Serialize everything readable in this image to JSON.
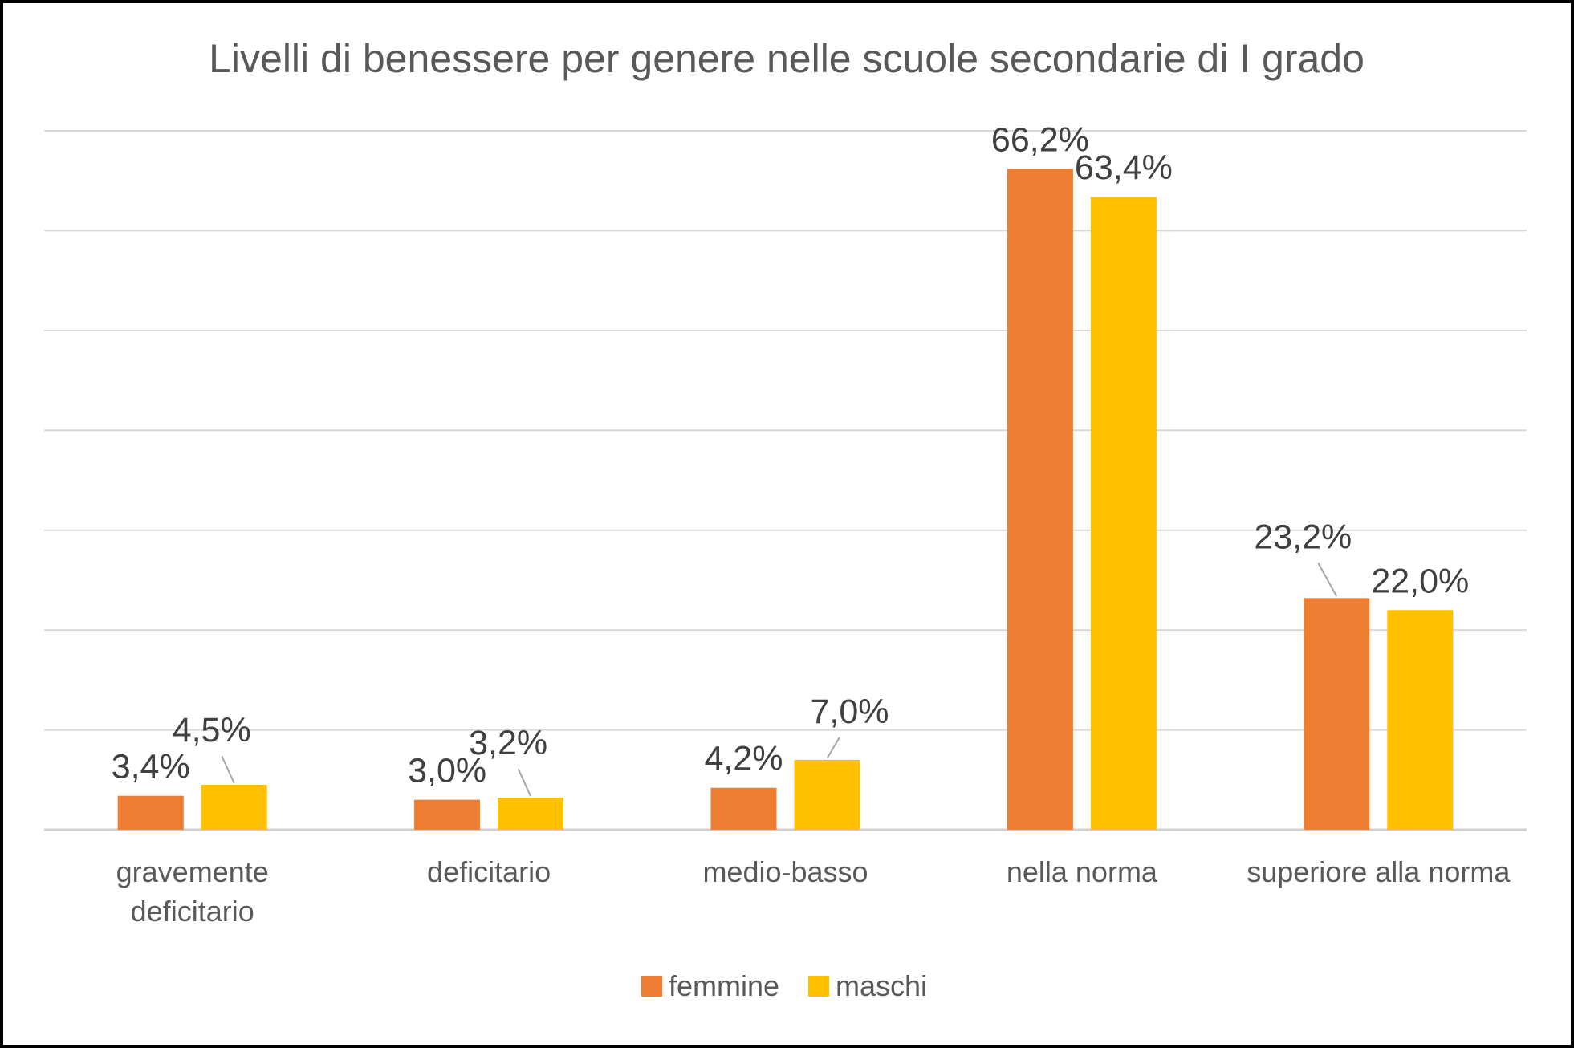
{
  "chart_data": {
    "type": "bar",
    "title": "Livelli di benessere per genere nelle scuole secondarie di I grado",
    "categories": [
      [
        "gravemente",
        "deficitario"
      ],
      [
        "deficitario"
      ],
      [
        "medio-basso"
      ],
      [
        "nella norma"
      ],
      [
        "superiore alla norma"
      ]
    ],
    "series": [
      {
        "name": "femmine",
        "color": "#ED7D31",
        "values": [
          3.4,
          3.0,
          4.2,
          66.2,
          23.2
        ],
        "labels": [
          "3,4%",
          "3,0%",
          "4,2%",
          "66,2%",
          "23,2%"
        ]
      },
      {
        "name": "maschi",
        "color": "#FFC000",
        "values": [
          4.5,
          3.2,
          7.0,
          63.4,
          22.0
        ],
        "labels": [
          "4,5%",
          "3,2%",
          "7,0%",
          "63,4%",
          "22,0%"
        ]
      }
    ],
    "ylim": [
      0,
      70
    ],
    "y_gridline_step": 10,
    "grid": true,
    "y_tick_labels_shown": false,
    "legend": "bottom"
  }
}
